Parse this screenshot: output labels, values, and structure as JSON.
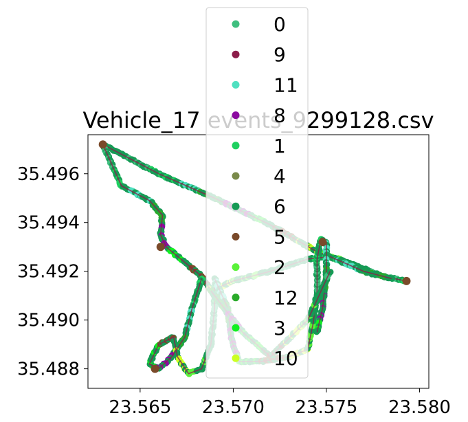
{
  "chart_data": {
    "type": "scatter",
    "title": "Vehicle_17 events_9299128.csv",
    "xlabel": "",
    "ylabel": "",
    "xlim": [
      23.5622,
      23.5805
    ],
    "ylim": [
      35.4872,
      35.4976
    ],
    "xticks": [
      23.565,
      23.57,
      23.575,
      23.58
    ],
    "yticks": [
      35.488,
      35.49,
      35.492,
      35.494,
      35.496
    ],
    "xtick_labels": [
      "23.565",
      "23.570",
      "23.575",
      "23.580"
    ],
    "ytick_labels": [
      "35.488",
      "35.490",
      "35.492",
      "35.494",
      "35.496"
    ],
    "grid": false,
    "legend_position": "top-center",
    "series": [
      {
        "name": "0",
        "color": "#3fbf7f"
      },
      {
        "name": "9",
        "color": "#8c1d4a"
      },
      {
        "name": "11",
        "color": "#4fe0c0"
      },
      {
        "name": "8",
        "color": "#8b0aa0"
      },
      {
        "name": "1",
        "color": "#1fd060"
      },
      {
        "name": "4",
        "color": "#7a8a4a"
      },
      {
        "name": "6",
        "color": "#169a55"
      },
      {
        "name": "5",
        "color": "#7a4a2a"
      },
      {
        "name": "2",
        "color": "#5af23a"
      },
      {
        "name": "12",
        "color": "#2aaa2a"
      },
      {
        "name": "3",
        "color": "#10f020"
      },
      {
        "name": "10",
        "color": "#ccff22"
      }
    ],
    "paths": {
      "main_loop": [
        [
          23.563,
          35.4972
        ],
        [
          23.566,
          35.496
        ],
        [
          23.569,
          35.495
        ],
        [
          23.572,
          35.4939
        ],
        [
          23.5745,
          35.4928
        ],
        [
          23.576,
          35.4924
        ],
        [
          23.578,
          35.4918
        ],
        [
          23.5793,
          35.4916
        ]
      ],
      "west_branch": [
        [
          23.563,
          35.4972
        ],
        [
          23.564,
          35.4955
        ],
        [
          23.5655,
          35.4949
        ],
        [
          23.5662,
          35.4943
        ],
        [
          23.5661,
          35.4935
        ],
        [
          23.5664,
          35.493
        ],
        [
          23.5675,
          35.4923
        ],
        [
          23.5683,
          35.4918
        ],
        [
          23.5688,
          35.4912
        ],
        [
          23.57,
          35.4916
        ],
        [
          23.572,
          35.492
        ],
        [
          23.574,
          35.4925
        ],
        [
          23.5752,
          35.4926
        ],
        [
          23.577,
          35.492
        ],
        [
          23.5785,
          35.4917
        ]
      ],
      "southwest_loop": [
        [
          23.5683,
          35.4917
        ],
        [
          23.5678,
          35.4905
        ],
        [
          23.5674,
          35.4893
        ],
        [
          23.5667,
          35.4885
        ],
        [
          23.566,
          35.488
        ],
        [
          23.5655,
          35.4882
        ],
        [
          23.566,
          35.489
        ],
        [
          23.5668,
          35.4893
        ],
        [
          23.567,
          35.4885
        ],
        [
          23.5676,
          35.4878
        ],
        [
          23.5683,
          35.488
        ],
        [
          23.5688,
          35.489
        ],
        [
          23.569,
          35.4905
        ],
        [
          23.569,
          35.4915
        ]
      ],
      "south_route": [
        [
          23.569,
          35.4917
        ],
        [
          23.5697,
          35.4905
        ],
        [
          23.5699,
          35.4892
        ],
        [
          23.5703,
          35.4883
        ],
        [
          23.5715,
          35.4883
        ],
        [
          23.573,
          35.4885
        ],
        [
          23.574,
          35.4888
        ],
        [
          23.5743,
          35.4899
        ],
        [
          23.5745,
          35.4912
        ],
        [
          23.5745,
          35.4925
        ],
        [
          23.5747,
          35.4933
        ],
        [
          23.575,
          35.4932
        ],
        [
          23.575,
          35.492
        ],
        [
          23.5748,
          35.4905
        ],
        [
          23.5745,
          35.4895
        ]
      ],
      "connector": [
        [
          23.5688,
          35.4912
        ],
        [
          23.5705,
          35.4895
        ],
        [
          23.572,
          35.4885
        ],
        [
          23.574,
          35.49
        ],
        [
          23.5752,
          35.492
        ]
      ]
    }
  }
}
